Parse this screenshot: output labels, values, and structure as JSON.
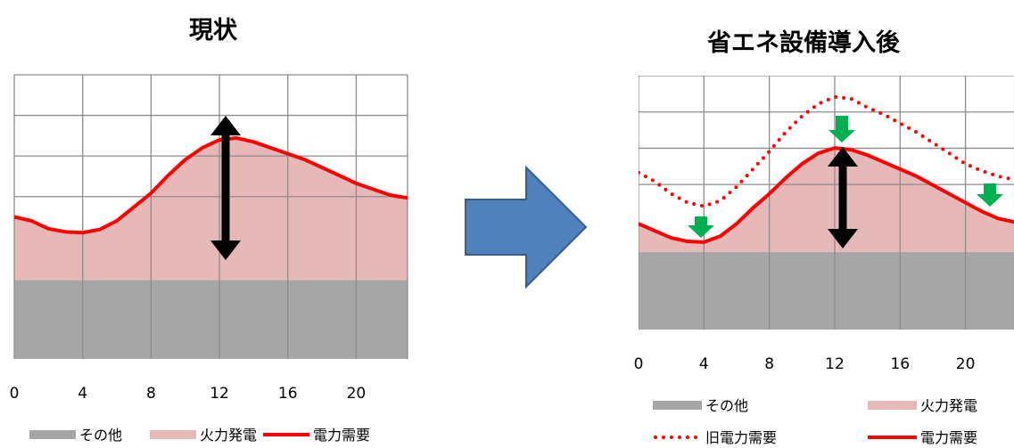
{
  "chart_data": [
    {
      "type": "area",
      "title": "現状",
      "x": [
        0,
        1,
        2,
        3,
        4,
        5,
        6,
        7,
        8,
        9,
        10,
        11,
        12,
        13,
        14,
        15,
        16,
        17,
        18,
        19,
        20,
        21,
        22,
        23
      ],
      "xticks": [
        0,
        4,
        8,
        12,
        16,
        20
      ],
      "series": [
        {
          "name": "その他",
          "kind": "area",
          "color": "#a6a6a6",
          "values": [
            2,
            2,
            2,
            2,
            2,
            2,
            2,
            2,
            2,
            2,
            2,
            2,
            2,
            2,
            2,
            2,
            2,
            2,
            2,
            2,
            2,
            2,
            2,
            2
          ]
        },
        {
          "name": "火力発電",
          "kind": "area",
          "color": "#e6b9b8",
          "values": [
            1.6,
            1.5,
            1.3,
            1.22,
            1.2,
            1.28,
            1.5,
            1.85,
            2.2,
            2.65,
            3.05,
            3.35,
            3.55,
            3.6,
            3.5,
            3.35,
            3.2,
            3.05,
            2.85,
            2.65,
            2.45,
            2.3,
            2.15,
            2.08
          ]
        },
        {
          "name": "電力需要",
          "kind": "line",
          "color": "#ff0000",
          "values": [
            3.6,
            3.5,
            3.3,
            3.22,
            3.2,
            3.28,
            3.5,
            3.85,
            4.2,
            4.65,
            5.05,
            5.35,
            5.55,
            5.6,
            5.5,
            5.35,
            5.2,
            5.05,
            4.85,
            4.65,
            4.45,
            4.3,
            4.15,
            4.08
          ]
        }
      ],
      "ylim": [
        0,
        7.2
      ],
      "legend_placement": "bottom",
      "grid": true
    },
    {
      "type": "area",
      "title": "省エネ設備導入後",
      "x": [
        0,
        1,
        2,
        3,
        4,
        5,
        6,
        7,
        8,
        9,
        10,
        11,
        12,
        13,
        14,
        15,
        16,
        17,
        18,
        19,
        20,
        21,
        22,
        23
      ],
      "xticks": [
        0,
        4,
        8,
        12,
        16,
        20
      ],
      "series": [
        {
          "name": "その他",
          "kind": "area",
          "color": "#a6a6a6",
          "values": [
            2.2,
            2.2,
            2.2,
            2.2,
            2.2,
            2.2,
            2.2,
            2.2,
            2.2,
            2.2,
            2.2,
            2.2,
            2.2,
            2.2,
            2.2,
            2.2,
            2.2,
            2.2,
            2.2,
            2.2,
            2.2,
            2.2,
            2.2,
            2.2
          ]
        },
        {
          "name": "火力発電",
          "kind": "area",
          "color": "#e6b9b8",
          "values": [
            0.8,
            0.6,
            0.4,
            0.3,
            0.28,
            0.45,
            0.8,
            1.25,
            1.65,
            2.1,
            2.5,
            2.8,
            2.95,
            2.9,
            2.75,
            2.55,
            2.35,
            2.15,
            1.9,
            1.65,
            1.4,
            1.15,
            0.95,
            0.85
          ]
        },
        {
          "name": "旧電力需要",
          "kind": "dotted-line",
          "color": "#ff0000",
          "values": [
            4.45,
            4.2,
            3.85,
            3.6,
            3.5,
            3.65,
            4.05,
            4.55,
            5.05,
            5.6,
            6.05,
            6.4,
            6.6,
            6.55,
            6.3,
            6.1,
            5.85,
            5.6,
            5.3,
            5.0,
            4.7,
            4.5,
            4.35,
            4.25
          ]
        },
        {
          "name": "電力需要",
          "kind": "line",
          "color": "#ff0000",
          "values": [
            3.0,
            2.8,
            2.6,
            2.5,
            2.48,
            2.65,
            3.0,
            3.45,
            3.85,
            4.3,
            4.7,
            5.0,
            5.15,
            5.1,
            4.95,
            4.75,
            4.55,
            4.35,
            4.1,
            3.85,
            3.6,
            3.35,
            3.15,
            3.05
          ]
        }
      ],
      "ylim": [
        0,
        7.2
      ],
      "legend_placement": "bottom",
      "grid": true
    }
  ],
  "arrow_color": "#4f81bd",
  "reduction_arrow_color": "#00b050"
}
